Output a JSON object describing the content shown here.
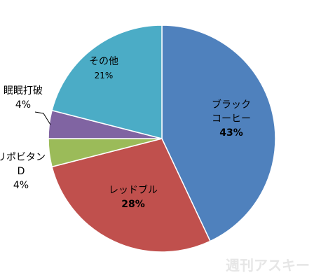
{
  "chart_data": {
    "type": "pie",
    "categories": [
      "ブラック\nコーヒー",
      "レッドブル",
      "リポビタン\nD",
      "眠眠打破",
      "その他"
    ],
    "values": [
      43,
      28,
      4,
      4,
      21
    ],
    "value_labels": [
      "43%",
      "28%",
      "4%",
      "4%",
      "21%"
    ],
    "colors": [
      "#4f81bd",
      "#c0504d",
      "#9bbb59",
      "#8064a2",
      "#4bacc6"
    ]
  },
  "watermark": "週刊アスキー"
}
